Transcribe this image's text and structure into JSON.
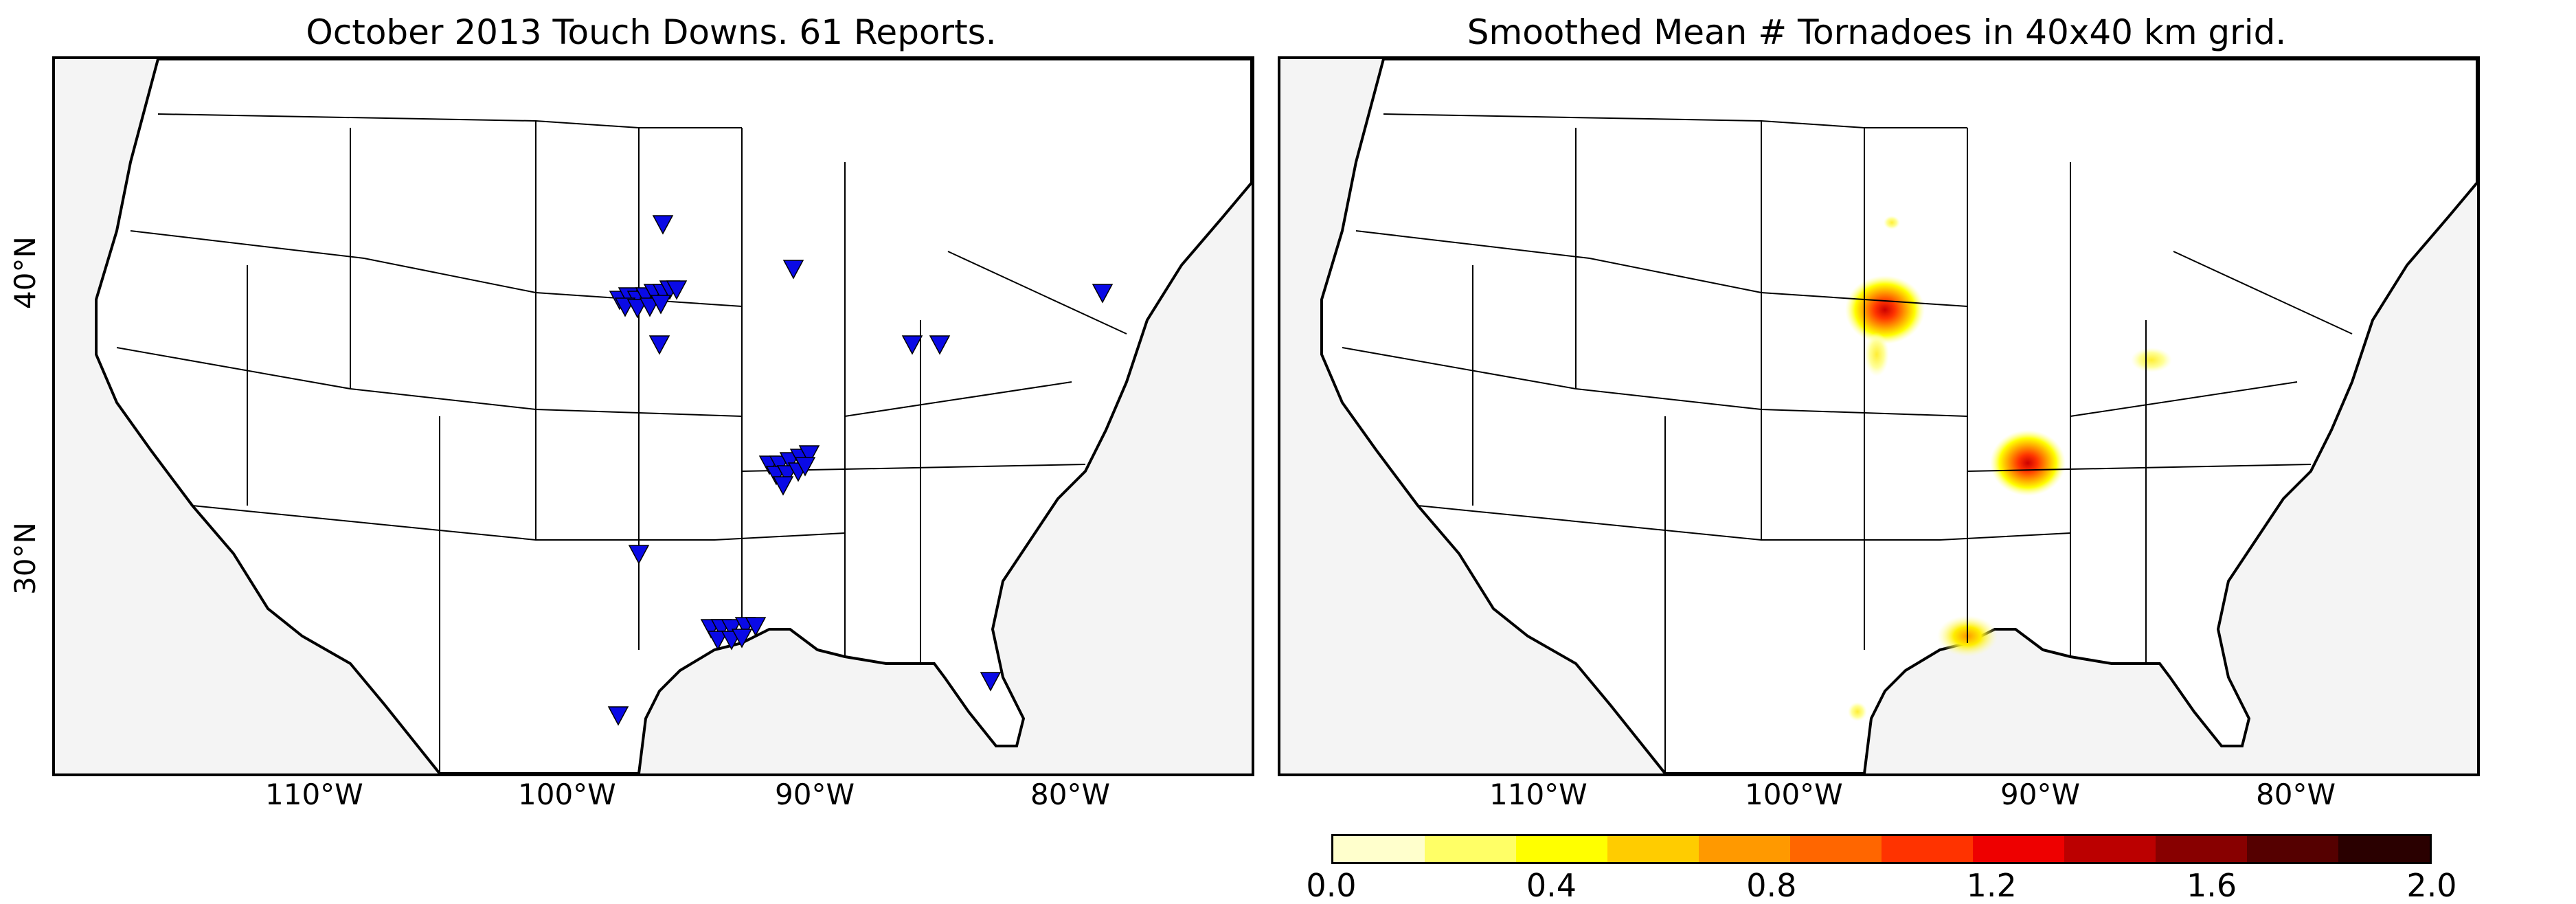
{
  "left_panel": {
    "title": "October 2013 Touch Downs. 61 Reports.",
    "marker_icon": "blue-triangle-marker",
    "marker_color": "#0a0ae6",
    "longitude_labels": [
      "110°W",
      "100°W",
      "90°W",
      "80°W"
    ],
    "latitude_labels": [
      "40°N",
      "30°N"
    ]
  },
  "right_panel": {
    "title": "Smoothed Mean # Tornadoes in 40x40 km grid.",
    "longitude_labels": [
      "110°W",
      "100°W",
      "90°W",
      "80°W"
    ]
  },
  "colorbar": {
    "tick_labels": [
      "0.0",
      "0.4",
      "0.8",
      "1.2",
      "1.6",
      "2.0"
    ],
    "bin_colors": [
      "#ffffcc",
      "#ffff66",
      "#ffff00",
      "#ffcc00",
      "#ff9900",
      "#ff6600",
      "#ff3300",
      "#ee0000",
      "#bb0000",
      "#880000",
      "#550000",
      "#2a0000"
    ]
  },
  "colors": {
    "land": "#ffffff",
    "ocean": "#f4f4f4",
    "border": "#000000"
  }
}
